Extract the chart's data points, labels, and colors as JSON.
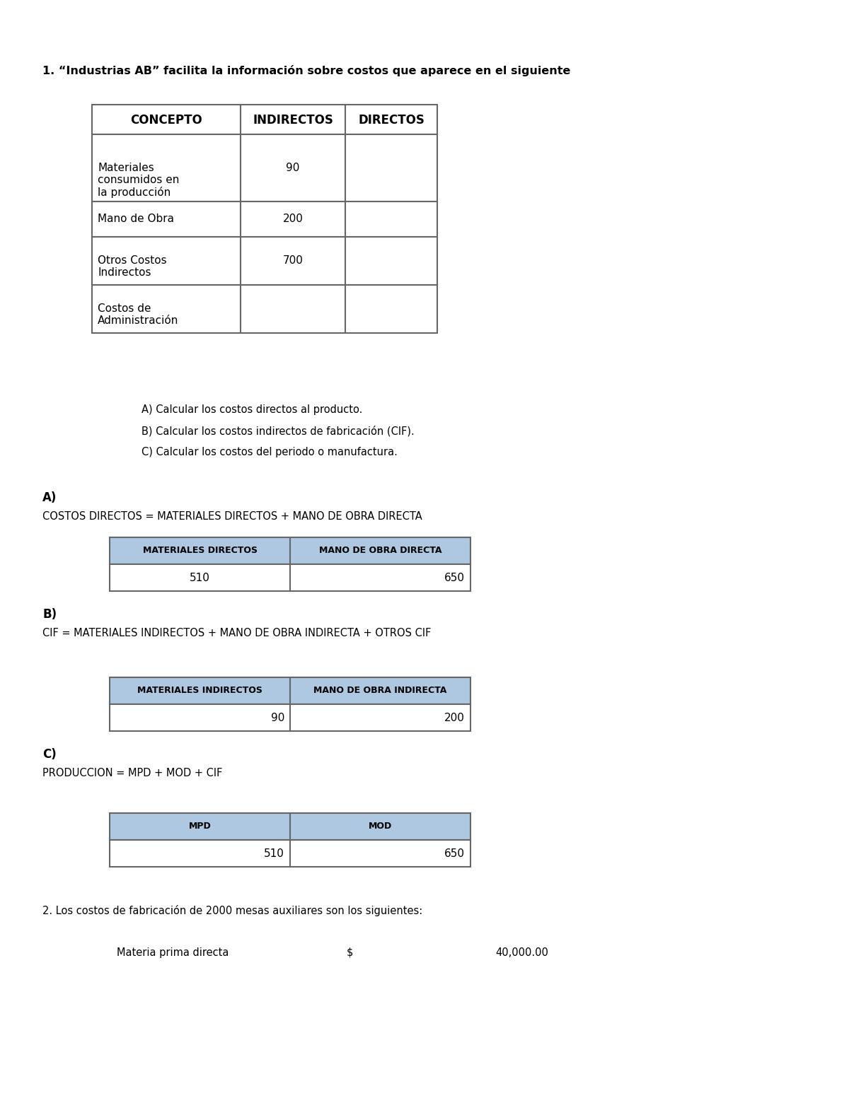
{
  "title1": "1. “Industrias AB” facilita la información sobre costos que aparece en el siguiente",
  "table1_headers": [
    "CONCEPTO",
    "INDIRECTOS",
    "DIRECTOS"
  ],
  "table1_rows": [
    [
      "Materiales\nconsumidos en\nla producción",
      "90",
      ""
    ],
    [
      "Mano de Obra",
      "200",
      ""
    ],
    [
      "Otros Costos\nIndirectos",
      "700",
      ""
    ],
    [
      "Costos de\nAdministración",
      "",
      ""
    ]
  ],
  "instructions": [
    "A) Calcular los costos directos al producto.",
    "B) Calcular los costos indirectos de fabricación (CIF).",
    "C) Calcular los costos del periodo o manufactura."
  ],
  "section_a_label": "A)",
  "section_a_formula": "COSTOS DIRECTOS = MATERIALES DIRECTOS + MANO DE OBRA DIRECTA",
  "table_a_headers": [
    "MATERIALES DIRECTOS",
    "MANO DE OBRA DIRECTA"
  ],
  "table_a_values": [
    "510",
    "650"
  ],
  "table_a_align": [
    "center",
    "right"
  ],
  "section_b_label": "B)",
  "section_b_formula": "CIF = MATERIALES INDIRECTOS + MANO DE OBRA INDIRECTA + OTROS CIF",
  "table_b_headers": [
    "MATERIALES INDIRECTOS",
    "MANO DE OBRA INDIRECTA"
  ],
  "table_b_values": [
    "90",
    "200"
  ],
  "table_b_align": [
    "right",
    "right"
  ],
  "section_c_label": "C)",
  "section_c_formula": "PRODUCCION = MPD + MOD + CIF",
  "table_c_headers": [
    "MPD",
    "MOD"
  ],
  "table_c_values": [
    "510",
    "650"
  ],
  "table_c_align": [
    "right",
    "right"
  ],
  "section2_text": "2. Los costos de fabricación de 2000 mesas auxiliares son los siguientes:",
  "item1_label": "Materia prima directa",
  "item1_symbol": "$",
  "item1_value": "40,000.00",
  "bg_color": "#ffffff",
  "header_bg": "#adc8e0",
  "table_border": "#666666",
  "text_color": "#000000"
}
